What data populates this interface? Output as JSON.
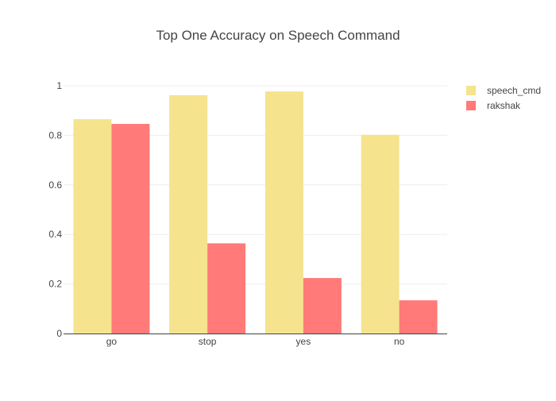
{
  "chart_data": {
    "type": "bar",
    "title": "Top One Accuracy on Speech Command",
    "xlabel": "",
    "ylabel": "",
    "categories": [
      "go",
      "stop",
      "yes",
      "no"
    ],
    "series": [
      {
        "name": "speech_cmd",
        "values": [
          0.865,
          0.962,
          0.977,
          0.802
        ],
        "color": "#f5e38d"
      },
      {
        "name": "rakshak",
        "values": [
          0.846,
          0.364,
          0.224,
          0.134
        ],
        "color": "#ff7a78"
      }
    ],
    "ylim": [
      0,
      1.0
    ],
    "yticks": [
      "0",
      "0.2",
      "0.4",
      "0.6",
      "0.8",
      "1"
    ],
    "ytick_values": [
      0,
      0.2,
      0.4,
      0.6,
      0.8,
      1.0
    ],
    "grid": true,
    "legend_position": "top-right"
  }
}
